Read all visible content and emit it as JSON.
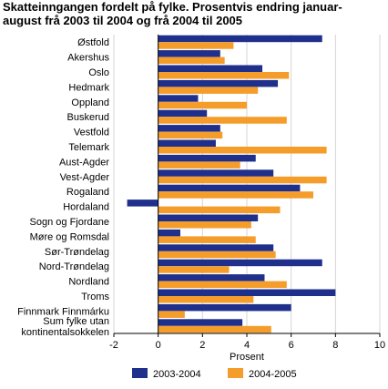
{
  "chart_data": {
    "type": "bar",
    "orientation": "horizontal",
    "title_lines": [
      "Skatteinngangen fordelt på fylke. Prosentvis endring januar-",
      "august frå 2003 til 2004 og frå 2004 til 2005"
    ],
    "categories": [
      [
        "Østfold"
      ],
      [
        "Akershus"
      ],
      [
        "Oslo"
      ],
      [
        "Hedmark"
      ],
      [
        "Oppland"
      ],
      [
        "Buskerud"
      ],
      [
        "Vestfold"
      ],
      [
        "Telemark"
      ],
      [
        "Aust-Agder"
      ],
      [
        "Vest-Agder"
      ],
      [
        "Rogaland"
      ],
      [
        "Hordaland"
      ],
      [
        "Sogn og Fjordane"
      ],
      [
        "Møre og Romsdal"
      ],
      [
        "Sør-Trøndelag"
      ],
      [
        "Nord-Trøndelag"
      ],
      [
        "Nordland"
      ],
      [
        "Troms"
      ],
      [
        "Finnmark Finnmárku"
      ],
      [
        "Sum fylke utan",
        "kontinentalsokkelen"
      ]
    ],
    "series": [
      {
        "name": "2003-2004",
        "color": "#1f2f8c",
        "values": [
          7.4,
          2.8,
          4.7,
          5.4,
          1.8,
          2.2,
          2.8,
          2.6,
          4.4,
          5.2,
          6.4,
          -1.4,
          4.5,
          1.0,
          5.2,
          7.4,
          4.8,
          8.0,
          6.0,
          3.8
        ]
      },
      {
        "name": "2004-2005",
        "color": "#f59d2a",
        "values": [
          3.4,
          3.0,
          5.9,
          4.5,
          4.0,
          5.8,
          2.9,
          7.6,
          3.7,
          7.6,
          7.0,
          5.5,
          4.2,
          4.4,
          5.3,
          3.2,
          5.8,
          4.3,
          1.2,
          5.1
        ]
      }
    ],
    "xlim": [
      -2,
      10
    ],
    "xticks": [
      -2,
      0,
      2,
      4,
      6,
      8,
      10
    ],
    "xlabel": "Prosent",
    "grid": "vertical",
    "legend_position": "bottom"
  }
}
